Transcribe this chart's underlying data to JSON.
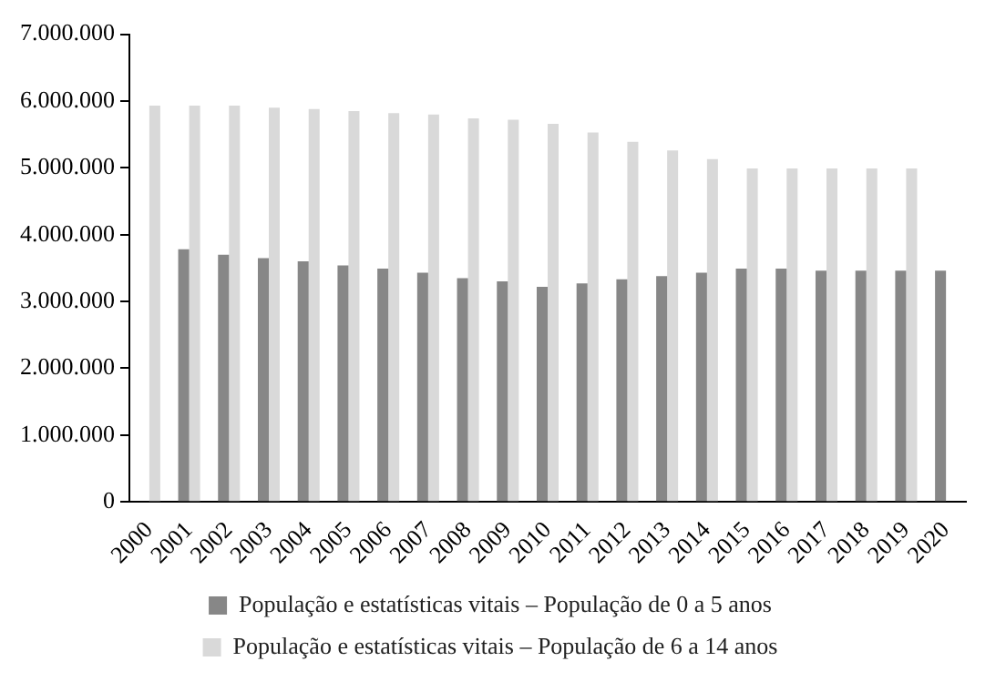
{
  "chart_data": {
    "type": "bar",
    "categories": [
      "2000",
      "2001",
      "2002",
      "2003",
      "2004",
      "2005",
      "2006",
      "2007",
      "2008",
      "2009",
      "2010",
      "2011",
      "2012",
      "2013",
      "2014",
      "2015",
      "2016",
      "2017",
      "2018",
      "2019",
      "2020"
    ],
    "series": [
      {
        "name": "População e estatísticas vitais – População de 0 a 5 anos",
        "color": "#878787",
        "values": [
          null,
          3780000,
          3700000,
          3650000,
          3600000,
          3540000,
          3490000,
          3430000,
          3350000,
          3300000,
          3220000,
          3270000,
          3330000,
          3380000,
          3430000,
          3490000,
          3490000,
          3460000,
          3460000,
          3460000,
          3460000
        ]
      },
      {
        "name": "População e estatísticas vitais – População de 6 a 14 anos",
        "color": "#d9d9d9",
        "values": [
          5930000,
          5930000,
          5930000,
          5900000,
          5880000,
          5850000,
          5820000,
          5800000,
          5740000,
          5720000,
          5660000,
          5530000,
          5390000,
          5260000,
          5130000,
          4990000,
          4990000,
          4990000,
          4990000,
          4990000,
          null
        ]
      }
    ],
    "ylim": [
      0,
      7000000
    ],
    "yticks": [
      {
        "value": 0,
        "label": "0"
      },
      {
        "value": 1000000,
        "label": "1.000.000"
      },
      {
        "value": 2000000,
        "label": "2.000.000"
      },
      {
        "value": 3000000,
        "label": "3.000.000"
      },
      {
        "value": 4000000,
        "label": "4.000.000"
      },
      {
        "value": 5000000,
        "label": "5.000.000"
      },
      {
        "value": 6000000,
        "label": "6.000.000"
      },
      {
        "value": 7000000,
        "label": "7.000.000"
      }
    ],
    "grid": false,
    "legend": "bottom"
  }
}
